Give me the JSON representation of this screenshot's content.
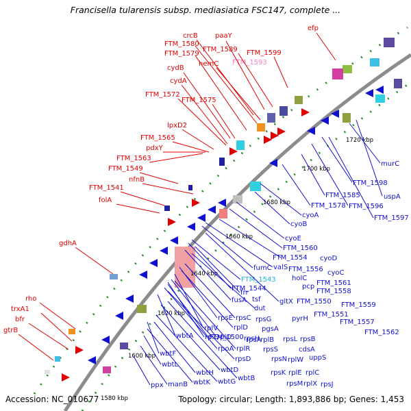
{
  "title": "Francisella tularensis subsp. mediasiatica FSC147, complete ...",
  "footer": {
    "accession": "Accession: NC_010677",
    "summary": "Topology: circular; Length: 1,893,886 bp; Genes: 1,453"
  },
  "colors": {
    "red_labels": "#e00000",
    "blue_labels": "#1010d0",
    "highlight_pink": "#ff80c0",
    "highlight_cyan": "#20b0e0",
    "backbone": "#8c8c8c"
  },
  "ticks": [
    "1720 kbp",
    "1700 kbp",
    "1680 kbp",
    "1660 kbp",
    "1640 kbp",
    "1620 kbp",
    "1600 kbp",
    "1580 kbp"
  ],
  "red_labels": [
    "crcB",
    "paaY",
    "efp",
    "FTM_1580",
    "FTM_1589",
    "FTM_1599",
    "FTM_1579",
    "hemC",
    "FTM_1593",
    "cydB",
    "cydA",
    "FTM_1572",
    "FTM_1575",
    "lpxD2",
    "FTM_1565",
    "pdxY",
    "FTM_1563",
    "FTM_1549",
    "nfnB",
    "FTM_1541",
    "folA",
    "gdhA",
    "rho",
    "trxA1",
    "bfr",
    "gtrB"
  ],
  "blue_labels": [
    "murC",
    "FTM_1598",
    "uspA",
    "FTM_1585",
    "FTM_1596",
    "FTM_1578",
    "FTM_1597",
    "cyoA",
    "cyoB",
    "cyoE",
    "FTM_1560",
    "cyoD",
    "FTM_1554",
    "valS",
    "FTM_1556",
    "cyoC",
    "fumC",
    "holC",
    "pcp",
    "FTM_1561",
    "FTM_1543",
    "FTM_1544",
    "FTM_1558",
    "frr",
    "gltX",
    "FTM_1550",
    "FTM_1559",
    "tsf",
    "fusA",
    "dut",
    "rpsG",
    "pyrH",
    "FTM_1551",
    "FTM_1557",
    "rpsE",
    "rpsC",
    "FTM_1562",
    "rplV",
    "rplD",
    "pgsA",
    "rplQ",
    "rplO",
    "rpsA",
    "rpsL",
    "rpsB",
    "wbtA",
    "FTM_1500",
    "rpsH",
    "rplB",
    "cdsA",
    "rpoA",
    "rplR",
    "rpsS",
    "wbtF",
    "rpsD",
    "rpsN",
    "rplW",
    "uppS",
    "wbtL",
    "wbtH",
    "wbtD",
    "rpsK",
    "rplE",
    "rplC",
    "ppx",
    "manB",
    "wbtK",
    "wbtG",
    "wbtB",
    "rpsM",
    "rplX",
    "rpsJ"
  ]
}
